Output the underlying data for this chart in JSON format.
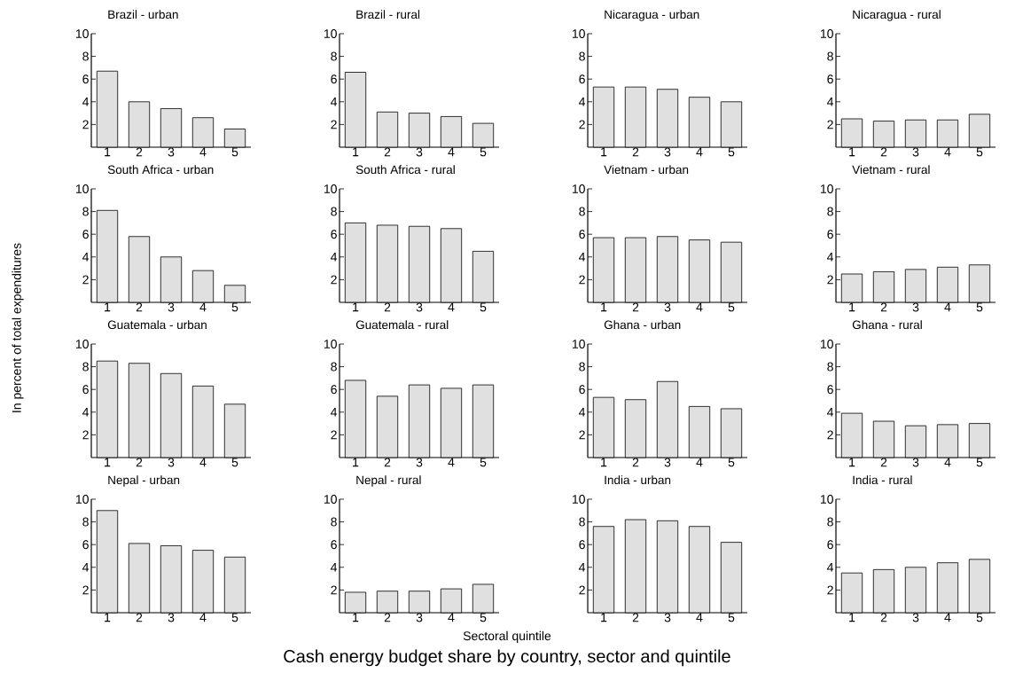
{
  "chart_data": [
    {
      "type": "bar",
      "title": "Brazil - urban",
      "categories": [
        "1",
        "2",
        "3",
        "4",
        "5"
      ],
      "values": [
        6.7,
        4.0,
        3.4,
        2.6,
        1.6
      ],
      "color": "#e0e0e0",
      "ylim": [
        0,
        10
      ],
      "yticks": [
        2,
        4,
        6,
        8,
        10
      ]
    },
    {
      "type": "bar",
      "title": "Brazil - rural",
      "categories": [
        "1",
        "2",
        "3",
        "4",
        "5"
      ],
      "values": [
        6.6,
        3.1,
        3.0,
        2.7,
        2.1
      ],
      "color": "#e0e0e0",
      "ylim": [
        0,
        10
      ],
      "yticks": [
        2,
        4,
        6,
        8,
        10
      ]
    },
    {
      "type": "bar",
      "title": "Nicaragua - urban",
      "categories": [
        "1",
        "2",
        "3",
        "4",
        "5"
      ],
      "values": [
        5.3,
        5.3,
        5.1,
        4.4,
        4.0
      ],
      "color": "#e0e0e0",
      "ylim": [
        0,
        10
      ],
      "yticks": [
        2,
        4,
        6,
        8,
        10
      ]
    },
    {
      "type": "bar",
      "title": "Nicaragua - rural",
      "categories": [
        "1",
        "2",
        "3",
        "4",
        "5"
      ],
      "values": [
        2.5,
        2.3,
        2.4,
        2.4,
        2.9
      ],
      "color": "#e0e0e0",
      "ylim": [
        0,
        10
      ],
      "yticks": [
        2,
        4,
        6,
        8,
        10
      ]
    },
    {
      "type": "bar",
      "title": "South Africa - urban",
      "categories": [
        "1",
        "2",
        "3",
        "4",
        "5"
      ],
      "values": [
        8.1,
        5.8,
        4.0,
        2.8,
        1.5
      ],
      "color": "#e0e0e0",
      "ylim": [
        0,
        10
      ],
      "yticks": [
        2,
        4,
        6,
        8,
        10
      ]
    },
    {
      "type": "bar",
      "title": "South Africa - rural",
      "categories": [
        "1",
        "2",
        "3",
        "4",
        "5"
      ],
      "values": [
        7.0,
        6.8,
        6.7,
        6.5,
        4.5
      ],
      "color": "#e0e0e0",
      "ylim": [
        0,
        10
      ],
      "yticks": [
        2,
        4,
        6,
        8,
        10
      ]
    },
    {
      "type": "bar",
      "title": "Vietnam - urban",
      "categories": [
        "1",
        "2",
        "3",
        "4",
        "5"
      ],
      "values": [
        5.7,
        5.7,
        5.8,
        5.5,
        5.3
      ],
      "color": "#e0e0e0",
      "ylim": [
        0,
        10
      ],
      "yticks": [
        2,
        4,
        6,
        8,
        10
      ]
    },
    {
      "type": "bar",
      "title": "Vietnam - rural",
      "categories": [
        "1",
        "2",
        "3",
        "4",
        "5"
      ],
      "values": [
        2.5,
        2.7,
        2.9,
        3.1,
        3.3
      ],
      "color": "#e0e0e0",
      "ylim": [
        0,
        10
      ],
      "yticks": [
        2,
        4,
        6,
        8,
        10
      ]
    },
    {
      "type": "bar",
      "title": "Guatemala - urban",
      "ylabel": "In percent of total expenditures",
      "categories": [
        "1",
        "2",
        "3",
        "4",
        "5"
      ],
      "values": [
        8.5,
        8.3,
        7.4,
        6.3,
        4.7
      ],
      "color": "#e0e0e0",
      "ylim": [
        0,
        10
      ],
      "yticks": [
        2,
        4,
        6,
        8,
        10
      ]
    },
    {
      "type": "bar",
      "title": "Guatemala - rural",
      "categories": [
        "1",
        "2",
        "3",
        "4",
        "5"
      ],
      "values": [
        6.8,
        5.4,
        6.4,
        6.1,
        6.4
      ],
      "color": "#e0e0e0",
      "ylim": [
        0,
        10
      ],
      "yticks": [
        2,
        4,
        6,
        8,
        10
      ]
    },
    {
      "type": "bar",
      "title": "Ghana - urban",
      "categories": [
        "1",
        "2",
        "3",
        "4",
        "5"
      ],
      "values": [
        5.3,
        5.1,
        6.7,
        4.5,
        4.3
      ],
      "color": "#e0e0e0",
      "ylim": [
        0,
        10
      ],
      "yticks": [
        2,
        4,
        6,
        8,
        10
      ]
    },
    {
      "type": "bar",
      "title": "Ghana - rural",
      "categories": [
        "1",
        "2",
        "3",
        "4",
        "5"
      ],
      "values": [
        3.9,
        3.2,
        2.8,
        2.9,
        3.0
      ],
      "color": "#e0e0e0",
      "ylim": [
        0,
        10
      ],
      "yticks": [
        2,
        4,
        6,
        8,
        10
      ]
    },
    {
      "type": "bar",
      "title": "Nepal - urban",
      "categories": [
        "1",
        "2",
        "3",
        "4",
        "5"
      ],
      "values": [
        9.0,
        6.1,
        5.9,
        5.5,
        4.9
      ],
      "color": "#e0e0e0",
      "ylim": [
        0,
        10
      ],
      "yticks": [
        2,
        4,
        6,
        8,
        10
      ]
    },
    {
      "type": "bar",
      "title": "Nepal - rural",
      "xlabel": "Sectoral quintile",
      "annotations": [
        "Cash energy budget share by country, sector and quintile"
      ],
      "categories": [
        "1",
        "2",
        "3",
        "4",
        "5"
      ],
      "values": [
        1.8,
        1.9,
        1.9,
        2.1,
        2.5
      ],
      "color": "#e0e0e0",
      "ylim": [
        0,
        10
      ],
      "yticks": [
        2,
        4,
        6,
        8,
        10
      ]
    },
    {
      "type": "bar",
      "title": "India - urban",
      "categories": [
        "1",
        "2",
        "3",
        "4",
        "5"
      ],
      "values": [
        7.6,
        8.2,
        8.1,
        7.6,
        6.2
      ],
      "color": "#e0e0e0",
      "ylim": [
        0,
        10
      ],
      "yticks": [
        2,
        4,
        6,
        8,
        10
      ]
    },
    {
      "type": "bar",
      "title": "India - rural",
      "categories": [
        "1",
        "2",
        "3",
        "4",
        "5"
      ],
      "values": [
        3.5,
        3.8,
        4.0,
        4.4,
        4.7
      ],
      "color": "#e0e0e0",
      "ylim": [
        0,
        10
      ],
      "yticks": [
        2,
        4,
        6,
        8,
        10
      ]
    }
  ]
}
